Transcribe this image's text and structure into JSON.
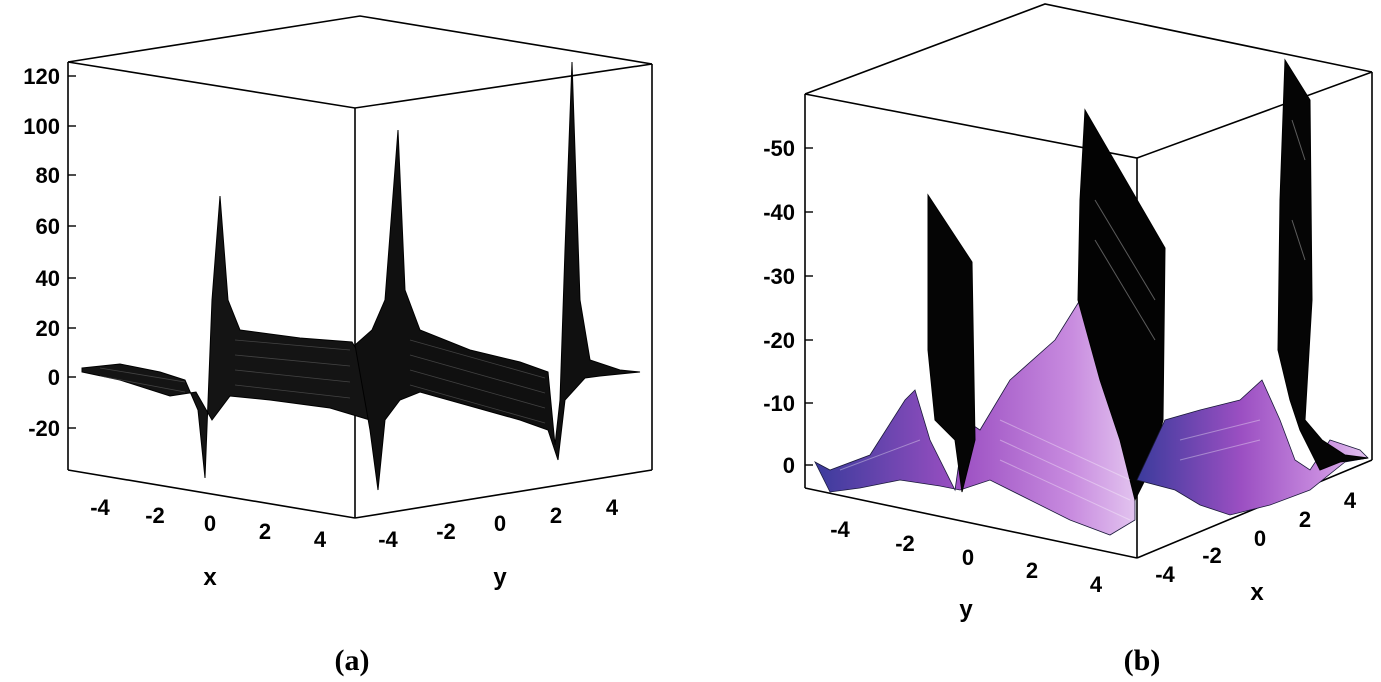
{
  "figure": {
    "panels": [
      {
        "id": "a",
        "caption": "(a)"
      },
      {
        "id": "b",
        "caption": "(b)"
      }
    ]
  },
  "chart_data": [
    {
      "type": "surface3d",
      "caption": "(a)",
      "xlabel": "x",
      "ylabel": "y",
      "zlabel": "",
      "x_ticks": [
        "-4",
        "-2",
        "0",
        "2",
        "4"
      ],
      "y_ticks": [
        "-4",
        "-2",
        "0",
        "2",
        "4"
      ],
      "z_ticks": [
        "120",
        "100",
        "80",
        "60",
        "40",
        "20",
        "0",
        "-20"
      ],
      "xlim": [
        -5,
        5
      ],
      "ylim": [
        -5,
        5
      ],
      "zlim": [
        -35,
        125
      ],
      "surface_color": "#1a1a1a",
      "profile_x": {
        "x": [
          -5,
          -3,
          -1.5,
          -0.5,
          -0.1,
          0.2,
          0.5,
          1,
          2,
          3.5,
          5
        ],
        "z": [
          2,
          0,
          -5,
          -12,
          -30,
          68,
          28,
          15,
          14,
          13,
          12
        ]
      },
      "profile_y": {
        "y": [
          -5,
          -4.6,
          -4.1,
          -3.5,
          -2,
          0,
          1.5,
          2.2,
          2.6,
          3.2,
          5
        ],
        "z": [
          12,
          -35,
          95,
          20,
          10,
          8,
          3,
          -30,
          122,
          10,
          2
        ]
      }
    },
    {
      "type": "surface3d",
      "caption": "(b)",
      "xlabel": "x",
      "ylabel": "y",
      "zlabel": "",
      "x_ticks": [
        "-4",
        "-2",
        "0",
        "2",
        "4"
      ],
      "y_ticks": [
        "-4",
        "-2",
        "0",
        "2",
        "4"
      ],
      "z_ticks": [
        "-50",
        "-40",
        "-30",
        "-20",
        "-10",
        "0"
      ],
      "xlim": [
        -5,
        5
      ],
      "ylim": [
        -5,
        5
      ],
      "zlim": [
        -58,
        4
      ],
      "surface_colors": [
        "#3a3a9a",
        "#9a4fc0",
        "#c98adf",
        "#000000"
      ],
      "profile_y": {
        "y": [
          -5,
          -3,
          -1.5,
          -1,
          -0.5,
          0,
          1,
          2.5,
          3.5,
          4,
          5
        ],
        "z": [
          0,
          -3,
          -8,
          -42,
          -28,
          -2,
          -18,
          -10,
          -55,
          -20,
          -2
        ]
      },
      "profile_x": {
        "x": [
          -5,
          -2,
          0,
          1.5,
          2,
          2.6,
          3.2,
          5
        ],
        "z": [
          -8,
          -10,
          -7,
          -15,
          -40,
          -58,
          -30,
          -1
        ]
      }
    }
  ]
}
